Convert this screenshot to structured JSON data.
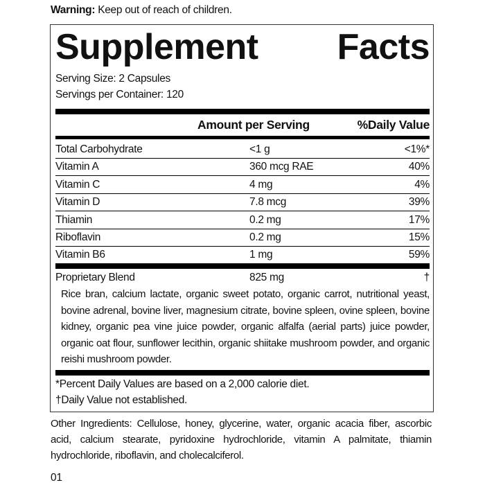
{
  "warning": {
    "label": "Warning:",
    "text": "Keep out of reach of children."
  },
  "title": {
    "word1": "Supplement",
    "word2": "Facts"
  },
  "serving_size": "Serving Size: 2 Capsules",
  "servings_per_container": "Servings per Container: 120",
  "headers": {
    "amount": "Amount per Serving",
    "dv": "%Daily Value"
  },
  "rows": [
    {
      "name": "Total Carbohydrate",
      "amount": "<1 g",
      "dv": "<1%*"
    },
    {
      "name": "Vitamin A",
      "amount": "360 mcg RAE",
      "dv": "40%"
    },
    {
      "name": "Vitamin C",
      "amount": "4 mg",
      "dv": "4%"
    },
    {
      "name": "Vitamin D",
      "amount": "7.8 mcg",
      "dv": "39%"
    },
    {
      "name": "Thiamin",
      "amount": "0.2 mg",
      "dv": "17%"
    },
    {
      "name": "Riboflavin",
      "amount": "0.2 mg",
      "dv": "15%"
    },
    {
      "name": "Vitamin B6",
      "amount": "1 mg",
      "dv": "59%"
    }
  ],
  "blend": {
    "name": "Proprietary Blend",
    "amount": "825 mg",
    "dv": "†",
    "ingredients": "Rice bran, calcium lactate, organic sweet potato, organic carrot, nutritional yeast, bovine adrenal, bovine liver, magnesium citrate, bovine spleen, ovine spleen, bovine kidney, organic pea vine juice powder, organic alfalfa (aerial parts) juice powder, organic oat flour, sunflower lecithin, organic shiitake mushroom powder, and organic reishi mushroom powder."
  },
  "footnotes": [
    "*Percent Daily Values are based on a 2,000 calorie diet.",
    "†Daily Value not established."
  ],
  "other_ingredients": "Other Ingredients: Cellulose, honey, glycerine, water, organic acacia fiber, ascorbic acid, calcium stearate, pyridoxine hydrochloride, vitamin A palmitate, thiamin hydrochloride, riboflavin, and cholecalciferol.",
  "code": "01"
}
